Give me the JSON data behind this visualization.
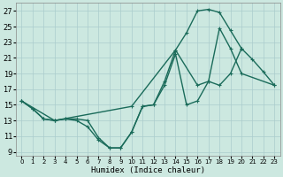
{
  "xlabel": "Humidex (Indice chaleur)",
  "bg_color": "#cce8e0",
  "grid_color": "#aacccc",
  "line_color": "#1a6b5a",
  "xlim": [
    -0.5,
    23.5
  ],
  "ylim": [
    8.5,
    28.0
  ],
  "xticks": [
    0,
    1,
    2,
    3,
    4,
    5,
    6,
    7,
    8,
    9,
    10,
    11,
    12,
    13,
    14,
    15,
    16,
    17,
    18,
    19,
    20,
    21,
    22,
    23
  ],
  "yticks": [
    9,
    11,
    13,
    15,
    17,
    19,
    21,
    23,
    25,
    27
  ],
  "line1_x": [
    0,
    1,
    2,
    3,
    4,
    5,
    6,
    7,
    8,
    9,
    10,
    11,
    12,
    13,
    14,
    15,
    16,
    17,
    18,
    19,
    20,
    23
  ],
  "line1_y": [
    15.5,
    14.5,
    13.2,
    13.0,
    13.2,
    13.0,
    12.2,
    10.5,
    9.5,
    9.5,
    11.5,
    14.8,
    15.0,
    17.5,
    21.5,
    15.0,
    15.5,
    18.0,
    24.8,
    22.2,
    19.0,
    17.5
  ],
  "line2_x": [
    0,
    1,
    2,
    3,
    4,
    5,
    6,
    7,
    8,
    9,
    10,
    11,
    12,
    13,
    14,
    15,
    16,
    17,
    18,
    19,
    20
  ],
  "line2_y": [
    15.5,
    14.5,
    13.2,
    13.0,
    13.2,
    13.2,
    13.0,
    10.8,
    9.5,
    9.5,
    11.5,
    14.8,
    15.0,
    18.0,
    22.0,
    24.2,
    27.0,
    27.2,
    26.8,
    24.5,
    22.2
  ],
  "line3_x": [
    0,
    3,
    10,
    14,
    16,
    17,
    18,
    19,
    20,
    21,
    22,
    23
  ],
  "line3_y": [
    15.5,
    13.0,
    14.8,
    22.0,
    17.5,
    18.0,
    17.5,
    19.0,
    22.2,
    20.8,
    19.2,
    17.5
  ],
  "marker_size": 3.5,
  "line_width": 1.0
}
